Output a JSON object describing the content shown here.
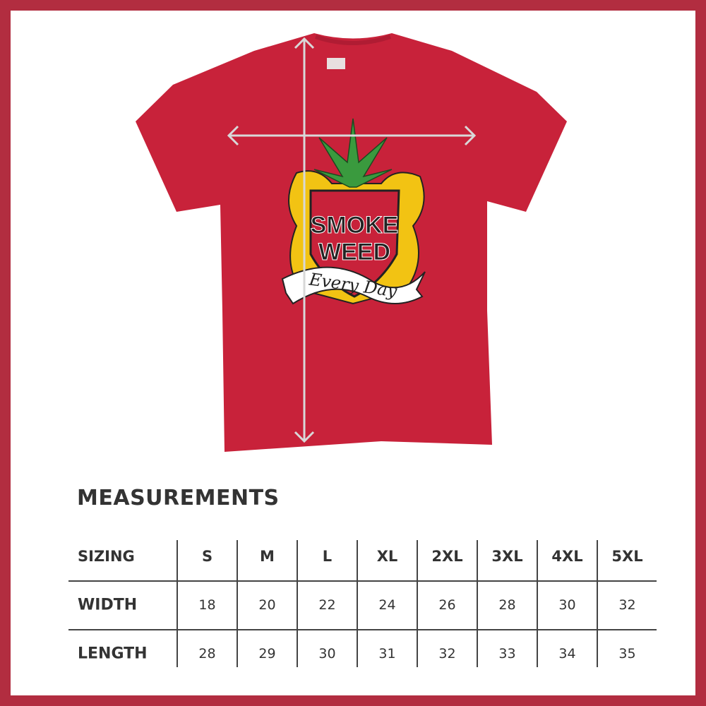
{
  "colors": {
    "border": "#b22d40",
    "shirt": "#c8223a",
    "arrows": "#d8d8d8",
    "text": "#333333"
  },
  "graphic": {
    "line1": "SMOKE",
    "line2": "WEED",
    "banner": "Every Day"
  },
  "icons": [
    "cannabis-leaf-icon",
    "measurement-arrow-icon"
  ],
  "title": "MEASUREMENTS",
  "table": {
    "header_label": "SIZING",
    "sizes": [
      "S",
      "M",
      "L",
      "XL",
      "2XL",
      "3XL",
      "4XL",
      "5XL"
    ],
    "rows": [
      {
        "label": "WIDTH",
        "values": [
          "18",
          "20",
          "22",
          "24",
          "26",
          "28",
          "30",
          "32"
        ]
      },
      {
        "label": "LENGTH",
        "values": [
          "28",
          "29",
          "30",
          "31",
          "32",
          "33",
          "34",
          "35"
        ]
      }
    ]
  }
}
